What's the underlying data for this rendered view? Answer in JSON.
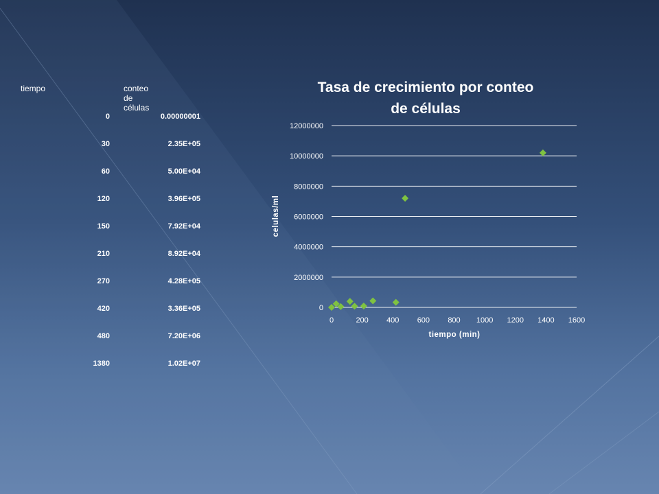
{
  "table": {
    "headers": [
      "tiempo",
      "conteo de células"
    ],
    "rows": [
      [
        "0",
        "0.00000001"
      ],
      [
        "30",
        "2.35E+05"
      ],
      [
        "60",
        "5.00E+04"
      ],
      [
        "120",
        "3.96E+05"
      ],
      [
        "150",
        "7.92E+04"
      ],
      [
        "210",
        "8.92E+04"
      ],
      [
        "270",
        "4.28E+05"
      ],
      [
        "420",
        "3.36E+05"
      ],
      [
        "480",
        "7.20E+06"
      ],
      [
        "1380",
        "1.02E+07"
      ]
    ]
  },
  "chart_data": {
    "type": "scatter",
    "title": [
      "Tasa de crecimiento por  conteo",
      "de células"
    ],
    "xlabel": "tiempo (min)",
    "ylabel": "celulas/ml",
    "xlim": [
      0,
      1600
    ],
    "ylim": [
      0,
      12000000
    ],
    "x_ticks": [
      "0",
      "200",
      "400",
      "600",
      "800",
      "1000",
      "1200",
      "1400",
      "1600"
    ],
    "y_ticks": [
      "0",
      "2000000",
      "4000000",
      "6000000",
      "8000000",
      "10000000",
      "12000000"
    ],
    "grid": "horizontal",
    "marker_color": "#7fc241",
    "marker": "diamond",
    "points": [
      {
        "x": 0,
        "y": 1e-08
      },
      {
        "x": 30,
        "y": 235000
      },
      {
        "x": 60,
        "y": 50000
      },
      {
        "x": 120,
        "y": 396000
      },
      {
        "x": 150,
        "y": 79200
      },
      {
        "x": 210,
        "y": 89200
      },
      {
        "x": 270,
        "y": 428000
      },
      {
        "x": 420,
        "y": 336000
      },
      {
        "x": 480,
        "y": 7200000
      },
      {
        "x": 1380,
        "y": 10200000
      }
    ]
  }
}
